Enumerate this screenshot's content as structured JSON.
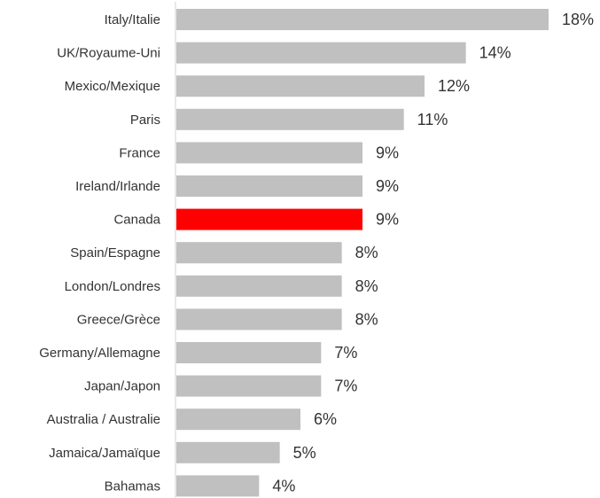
{
  "chart_data": {
    "type": "bar",
    "orientation": "horizontal",
    "categories": [
      "Italy/Italie",
      "UK/Royaume-Uni",
      "Mexico/Mexique",
      "Paris",
      "France",
      "Ireland/Irlande",
      "Canada",
      "Spain/Espagne",
      "London/Londres",
      "Greece/Grèce",
      "Germany/Allemagne",
      "Japan/Japon",
      "Australia / Australie",
      "Jamaica/Jamaïque",
      "Bahamas"
    ],
    "values": [
      18,
      14,
      12,
      11,
      9,
      9,
      9,
      8,
      8,
      8,
      7,
      7,
      6,
      5,
      4
    ],
    "value_labels": [
      "18%",
      "14%",
      "12%",
      "11%",
      "9%",
      "9%",
      "9%",
      "8%",
      "8%",
      "8%",
      "7%",
      "7%",
      "6%",
      "5%",
      "4%"
    ],
    "unit": "%",
    "xlim": [
      0,
      18
    ],
    "grid": false,
    "legend": "none",
    "colors": {
      "default_bar": "#c0c0c0",
      "highlight_bar": "#ff0000",
      "axis_line": "#d0d0d0",
      "text": "#333333"
    },
    "highlight": "Canada"
  }
}
